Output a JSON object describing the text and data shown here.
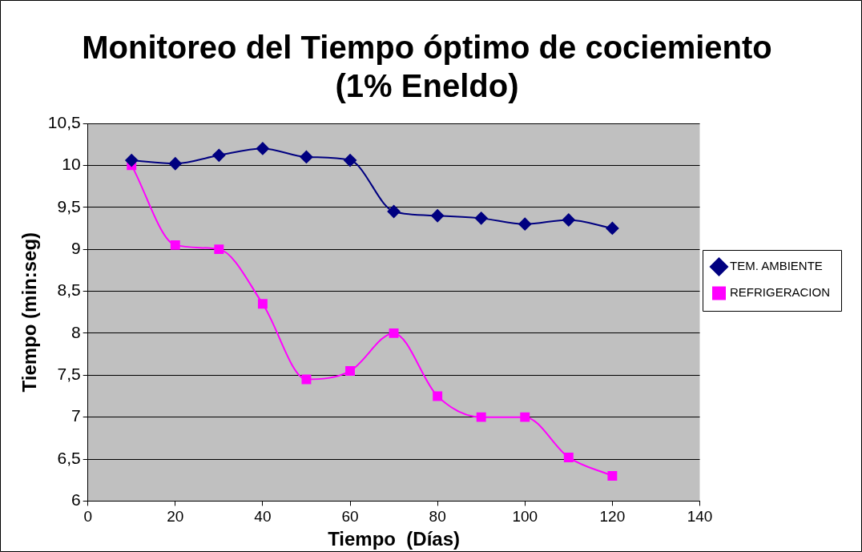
{
  "chart_data": {
    "type": "line",
    "title": "Monitoreo del Tiempo óptimo de cociemiento (1% Eneldo)",
    "xlabel": "Tiempo  (Días)",
    "ylabel": "Tiempo (min:seg)",
    "x": [
      10,
      20,
      30,
      40,
      50,
      60,
      70,
      80,
      90,
      100,
      110,
      120
    ],
    "series": [
      {
        "name": "TEM. AMBIENTE",
        "color": "#000080",
        "marker": "diamond",
        "values": [
          10.06,
          10.02,
          10.12,
          10.2,
          10.1,
          10.06,
          9.45,
          9.4,
          9.37,
          9.3,
          9.35,
          9.25
        ]
      },
      {
        "name": "REFRIGERACION",
        "color": "#ff00ff",
        "marker": "square",
        "values": [
          10,
          9.05,
          9.0,
          8.35,
          7.45,
          7.55,
          8.0,
          7.25,
          7.0,
          7.0,
          6.52,
          6.3
        ]
      }
    ],
    "xlim": [
      0,
      140
    ],
    "xticks": [
      0,
      20,
      40,
      60,
      80,
      100,
      120,
      140
    ],
    "ylim": [
      6,
      10.5
    ],
    "yticks": [
      6,
      {
        "value": 6.5,
        "label": "6,5"
      },
      7,
      {
        "value": 7.5,
        "label": "7,5"
      },
      8,
      {
        "value": 8.5,
        "label": "8,5"
      },
      9,
      {
        "value": 9.5,
        "label": "9,5"
      },
      10,
      {
        "value": 10.5,
        "label": "10,5"
      }
    ],
    "grid": "y",
    "legend": "right",
    "line_style": "solid"
  }
}
